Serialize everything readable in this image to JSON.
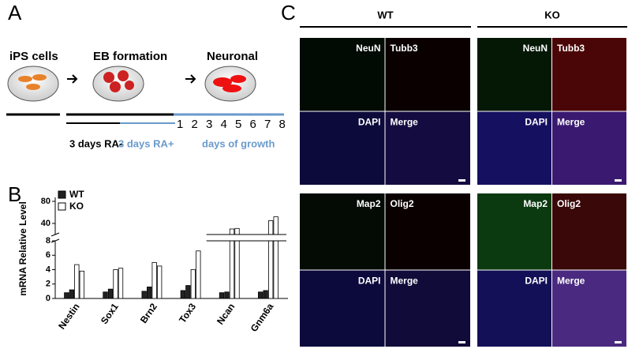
{
  "panel_a": {
    "label": "A",
    "steps": [
      "iPS cells",
      "EB  formation",
      "Neuronal"
    ],
    "days": [
      1,
      2,
      3,
      4,
      5,
      6,
      7,
      8
    ],
    "phases": [
      "3 days RA-",
      "3 days RA+",
      "days of growth"
    ]
  },
  "chart_data": {
    "panel_label": "B",
    "type": "bar",
    "ylabel": "mRNA Relative Level",
    "categories": [
      "Nestin",
      "Sox1",
      "Brn2",
      "Tox3",
      "Ncan",
      "Gnm6a"
    ],
    "series": [
      {
        "name": "WT",
        "color": "#222222",
        "values": [
          [
            0.8,
            1.2
          ],
          [
            0.9,
            1.3
          ],
          [
            1.0,
            1.6
          ],
          [
            1.1,
            1.8
          ],
          [
            0.8,
            0.9
          ],
          [
            0.9,
            1.1
          ]
        ]
      },
      {
        "name": "KO",
        "color": "#ffffff",
        "values": [
          [
            4.7,
            3.8
          ],
          [
            4.0,
            4.2
          ],
          [
            5.0,
            4.5
          ],
          [
            4.0,
            6.6
          ],
          [
            30,
            31
          ],
          [
            45,
            52
          ]
        ]
      }
    ],
    "ylim": [
      0,
      80
    ],
    "axis_break": [
      8,
      20
    ],
    "yticks": [
      0,
      2,
      4,
      6,
      8,
      40,
      80
    ]
  },
  "panel_c": {
    "label": "C",
    "groups": [
      "WT",
      "KO"
    ],
    "blocks": [
      [
        "NeuN",
        "Tubb3",
        "DAPI",
        "Merge"
      ],
      [
        "Map2",
        "Olig2",
        "DAPI",
        "Merge"
      ]
    ]
  }
}
